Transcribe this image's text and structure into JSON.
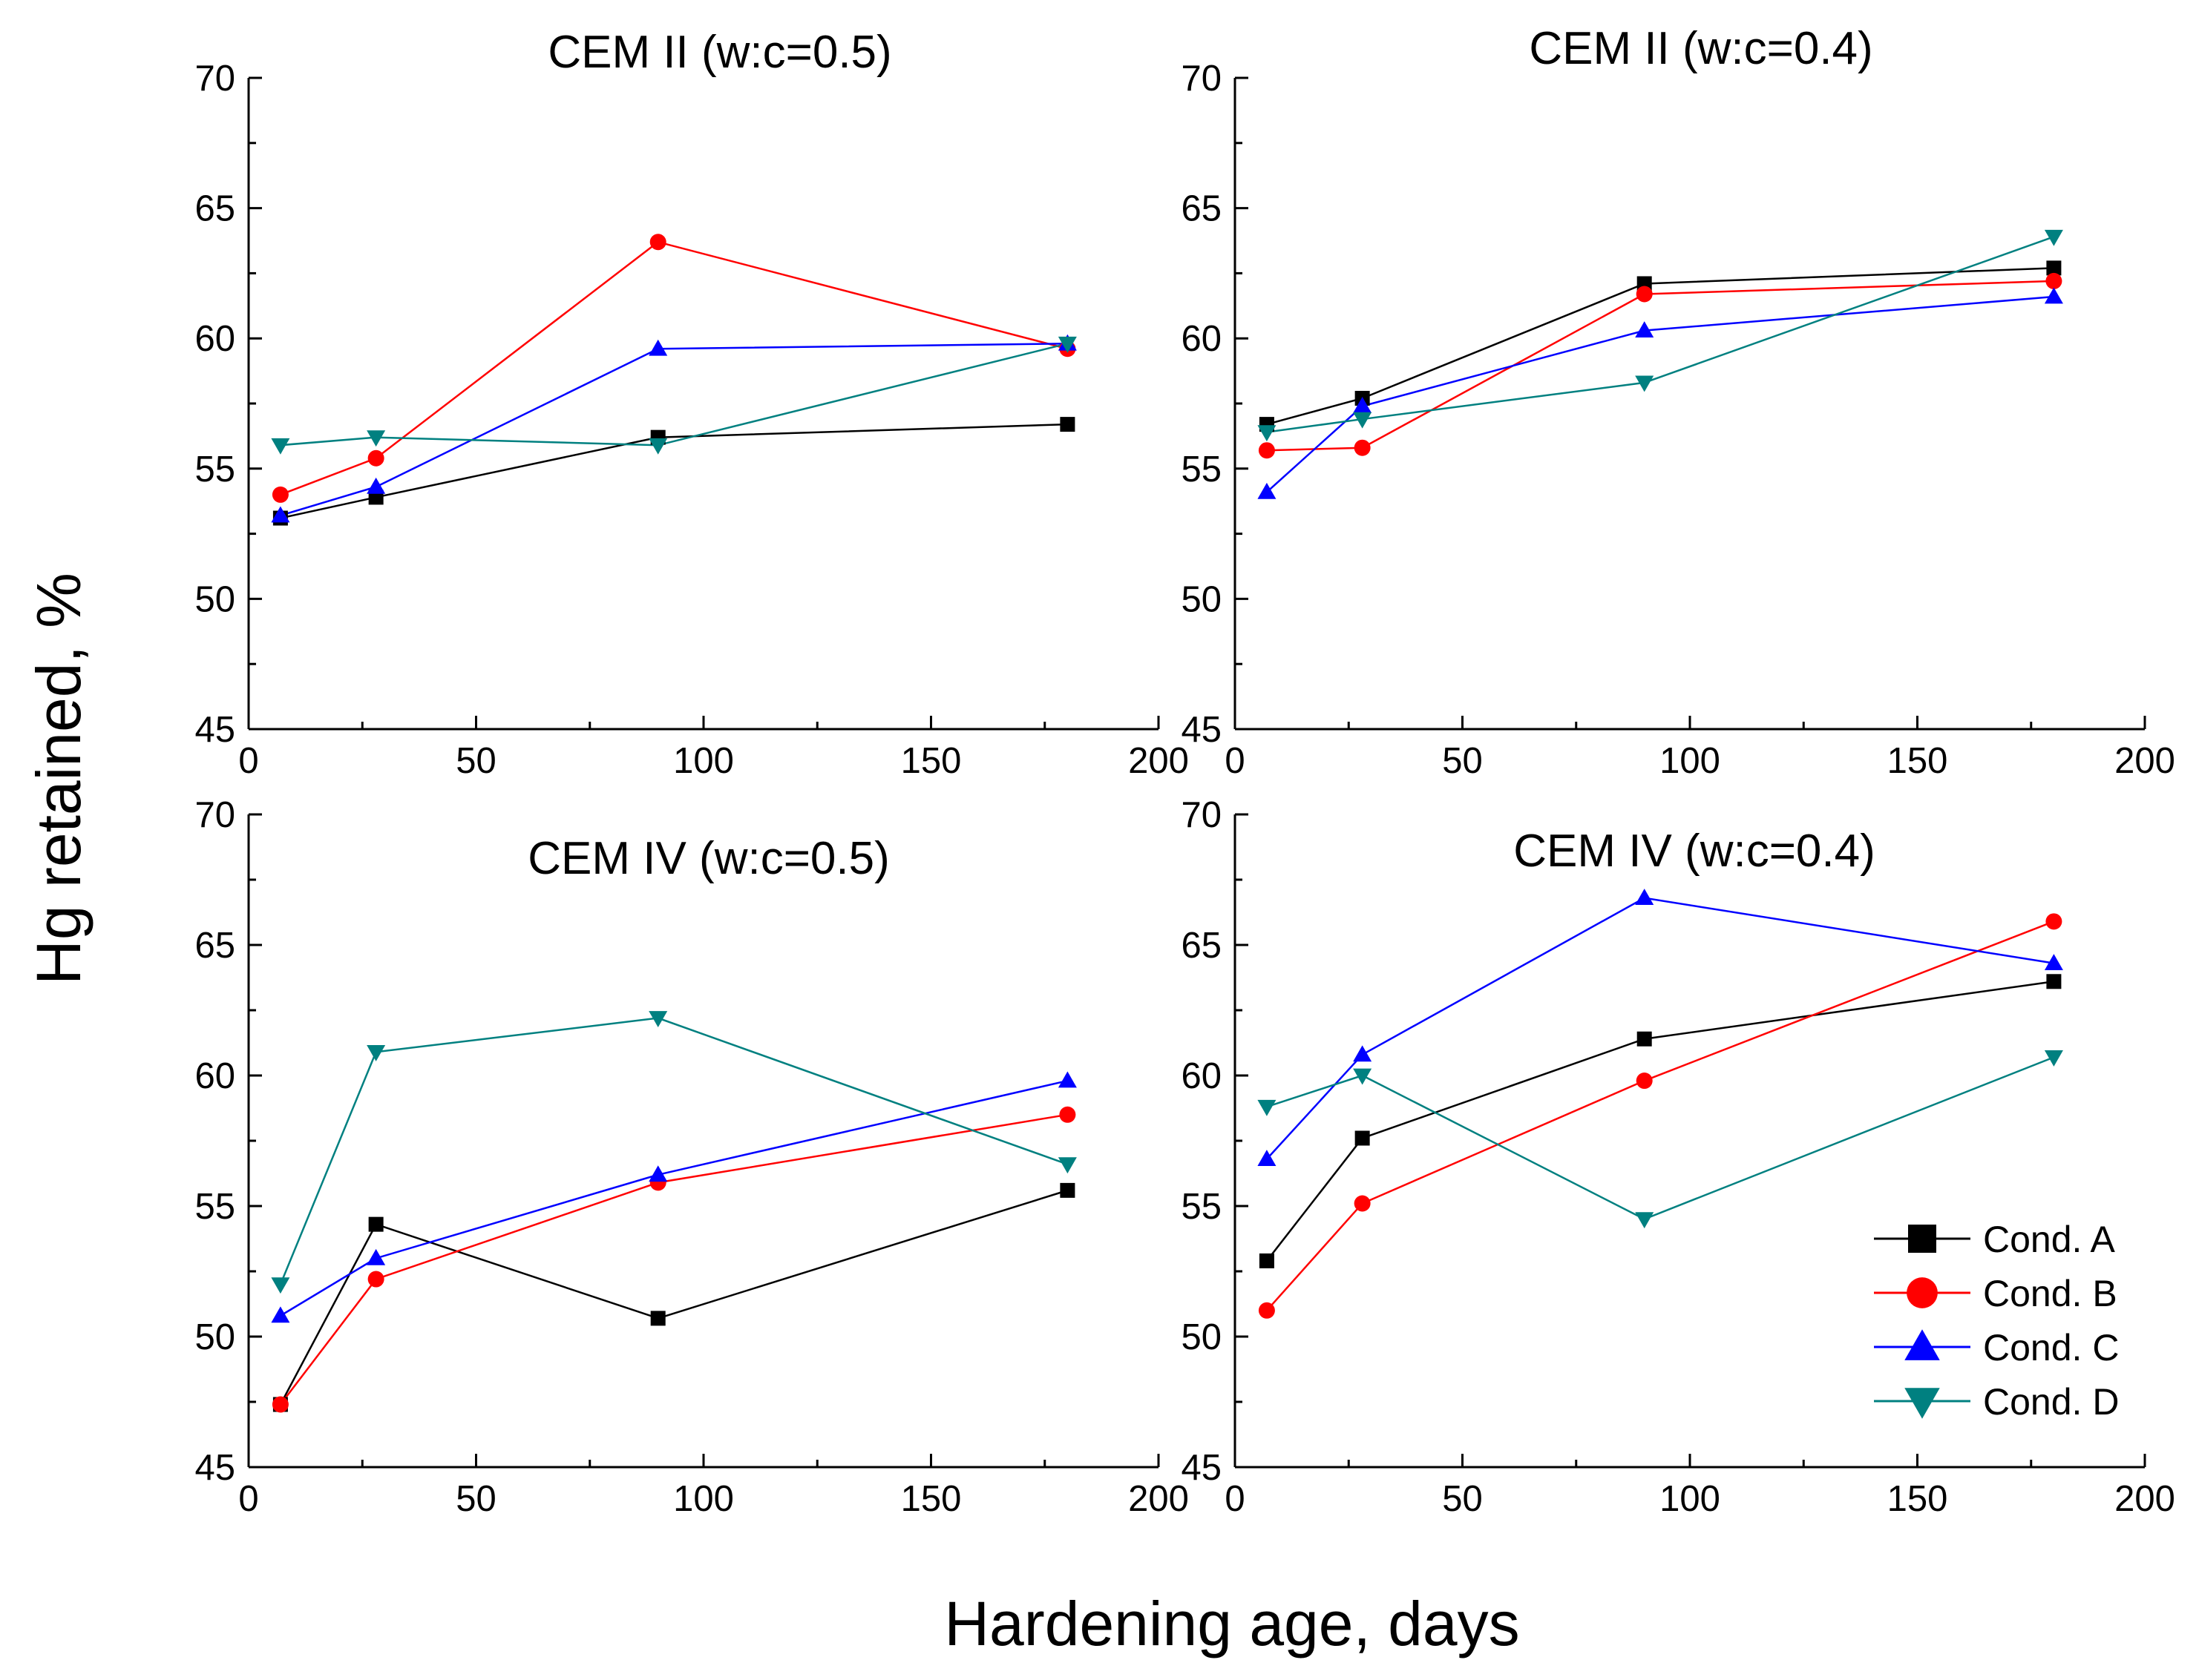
{
  "figure": {
    "xlabel": "Hardening age, days",
    "ylabel": "Hg retained, %"
  },
  "colors": {
    "Cond. A": "#000000",
    "Cond. B": "#ff0000",
    "Cond. C": "#0000ff",
    "Cond. D": "#008080"
  },
  "legend": {
    "placement": "bottom-right of lower-right panel",
    "entries": [
      {
        "name": "Cond. A",
        "marker": "square"
      },
      {
        "name": "Cond. B",
        "marker": "circle"
      },
      {
        "name": "Cond. C",
        "marker": "triangle-up"
      },
      {
        "name": "Cond. D",
        "marker": "triangle-down"
      }
    ]
  },
  "chart_data": [
    {
      "type": "line",
      "title": "CEM II (w:c=0.5)",
      "xlim": [
        0,
        200
      ],
      "ylim": [
        45,
        70
      ],
      "xticks": [
        0,
        50,
        100,
        150,
        200
      ],
      "yticks": [
        45,
        50,
        55,
        60,
        65,
        70
      ],
      "x": [
        7,
        28,
        90,
        180
      ],
      "series": [
        {
          "name": "Cond. A",
          "marker": "square",
          "values": [
            53.1,
            53.9,
            56.2,
            56.7
          ]
        },
        {
          "name": "Cond. B",
          "marker": "circle",
          "values": [
            54.0,
            55.4,
            63.7,
            59.6
          ]
        },
        {
          "name": "Cond. C",
          "marker": "triangle-up",
          "values": [
            53.2,
            54.3,
            59.6,
            59.8
          ]
        },
        {
          "name": "Cond. D",
          "marker": "triangle-down",
          "values": [
            55.9,
            56.2,
            55.9,
            59.8
          ]
        }
      ]
    },
    {
      "type": "line",
      "title": "CEM II (w:c=0.4)",
      "xlim": [
        0,
        200
      ],
      "ylim": [
        45,
        70
      ],
      "xticks": [
        0,
        50,
        100,
        150,
        200
      ],
      "yticks": [
        45,
        50,
        55,
        60,
        65,
        70
      ],
      "x": [
        7,
        28,
        90,
        180
      ],
      "series": [
        {
          "name": "Cond. A",
          "marker": "square",
          "values": [
            56.7,
            57.7,
            62.1,
            62.7
          ]
        },
        {
          "name": "Cond. B",
          "marker": "circle",
          "values": [
            55.7,
            55.8,
            61.7,
            62.2
          ]
        },
        {
          "name": "Cond. C",
          "marker": "triangle-up",
          "values": [
            54.1,
            57.4,
            60.3,
            61.6
          ]
        },
        {
          "name": "Cond. D",
          "marker": "triangle-down",
          "values": [
            56.4,
            56.9,
            58.3,
            63.9
          ]
        }
      ]
    },
    {
      "type": "line",
      "title": "CEM IV (w:c=0.5)",
      "xlim": [
        0,
        200
      ],
      "ylim": [
        45,
        70
      ],
      "xticks": [
        0,
        50,
        100,
        150,
        200
      ],
      "yticks": [
        45,
        50,
        55,
        60,
        65,
        70
      ],
      "x": [
        7,
        28,
        90,
        180
      ],
      "series": [
        {
          "name": "Cond. A",
          "marker": "square",
          "values": [
            47.4,
            54.3,
            50.7,
            55.6
          ]
        },
        {
          "name": "Cond. B",
          "marker": "circle",
          "values": [
            47.4,
            52.2,
            55.9,
            58.5
          ]
        },
        {
          "name": "Cond. C",
          "marker": "triangle-up",
          "values": [
            50.8,
            53.0,
            56.2,
            59.8
          ]
        },
        {
          "name": "Cond. D",
          "marker": "triangle-down",
          "values": [
            52.0,
            60.9,
            62.2,
            56.6
          ]
        }
      ]
    },
    {
      "type": "line",
      "title": "CEM IV (w:c=0.4)",
      "xlim": [
        0,
        200
      ],
      "ylim": [
        45,
        70
      ],
      "xticks": [
        0,
        50,
        100,
        150,
        200
      ],
      "yticks": [
        45,
        50,
        55,
        60,
        65,
        70
      ],
      "x": [
        7,
        28,
        90,
        180
      ],
      "series": [
        {
          "name": "Cond. A",
          "marker": "square",
          "values": [
            52.9,
            57.6,
            61.4,
            63.6
          ]
        },
        {
          "name": "Cond. B",
          "marker": "circle",
          "values": [
            51.0,
            55.1,
            59.8,
            65.9
          ]
        },
        {
          "name": "Cond. C",
          "marker": "triangle-up",
          "values": [
            56.8,
            60.8,
            66.8,
            64.3
          ]
        },
        {
          "name": "Cond. D",
          "marker": "triangle-down",
          "values": [
            58.8,
            60.0,
            54.5,
            60.7
          ]
        }
      ]
    }
  ]
}
